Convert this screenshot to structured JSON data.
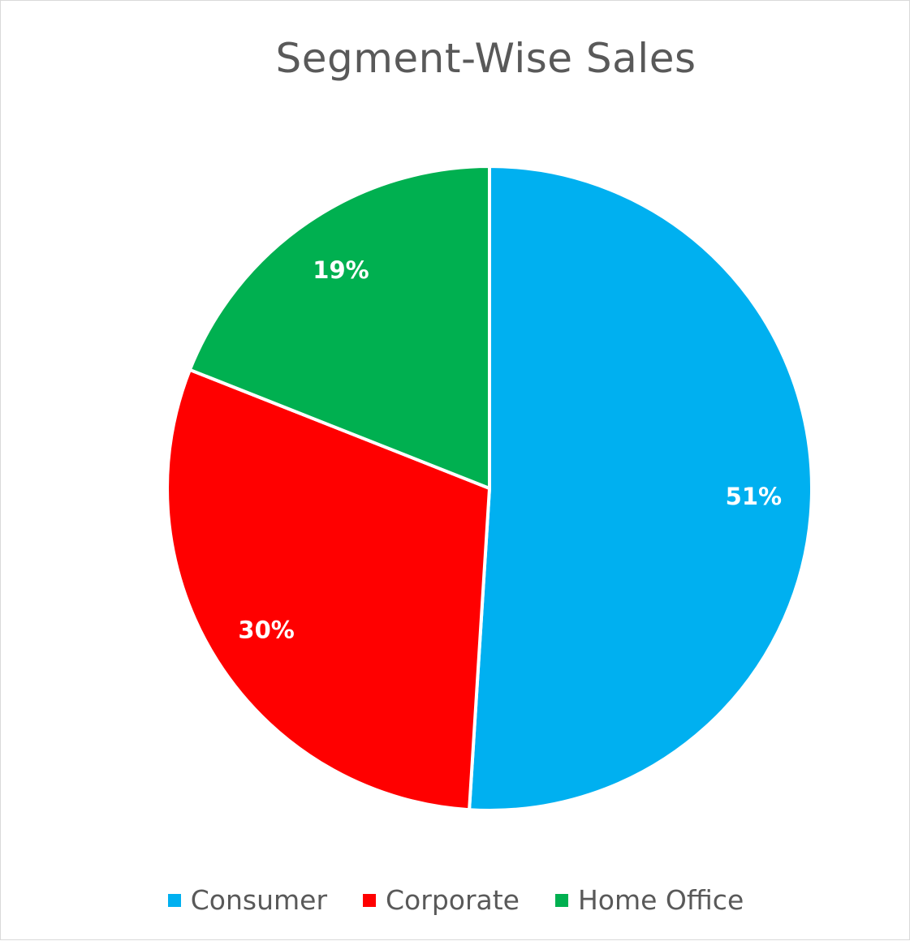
{
  "chart_data": {
    "type": "pie",
    "title": "Segment-Wise Sales",
    "categories": [
      "Consumer",
      "Corporate",
      "Home Office"
    ],
    "values": [
      51,
      30,
      19
    ],
    "unit": "%",
    "data_labels": [
      "51%",
      "30%",
      "19%"
    ],
    "colors": [
      "#00b0f0",
      "#ff0000",
      "#00b050"
    ],
    "legend_position": "bottom",
    "start_angle": "12 o'clock",
    "direction": "clockwise"
  }
}
